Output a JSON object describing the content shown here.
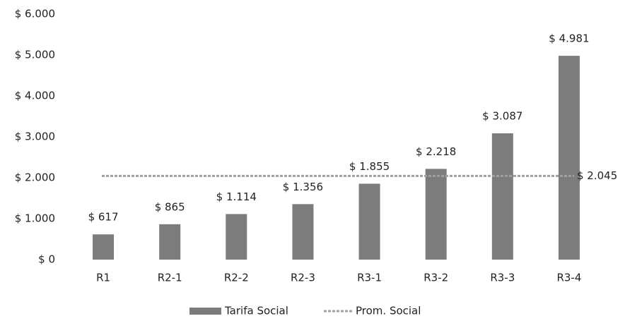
{
  "chart_data": {
    "type": "bar",
    "categories": [
      "R1",
      "R2-1",
      "R2-2",
      "R2-3",
      "R3-1",
      "R3-2",
      "R3-3",
      "R3-4"
    ],
    "series": [
      {
        "name": "Tarifa Social",
        "color": "#7c7c7c",
        "values": [
          617,
          865,
          1114,
          1356,
          1855,
          2218,
          3087,
          4981
        ],
        "value_labels": [
          "$ 617",
          "$ 865",
          "$ 1.114",
          "$ 1.356",
          "$ 1.855",
          "$ 2.218",
          "$ 3.087",
          "$ 4.981"
        ]
      }
    ],
    "reference_line": {
      "name": "Prom. Social",
      "color": "#a0a0a0",
      "value": 2045,
      "value_label": "$ 2.045"
    },
    "ylim": [
      0,
      6000
    ],
    "yticks": [
      {
        "value": 0,
        "label": "$ 0"
      },
      {
        "value": 1000,
        "label": "$ 1.000"
      },
      {
        "value": 2000,
        "label": "$ 2.000"
      },
      {
        "value": 3000,
        "label": "$ 3.000"
      },
      {
        "value": 4000,
        "label": "$ 4.000"
      },
      {
        "value": 5000,
        "label": "$ 5.000"
      },
      {
        "value": 6000,
        "label": "$ 6.000"
      }
    ],
    "grid": false,
    "legend": "bottom"
  }
}
